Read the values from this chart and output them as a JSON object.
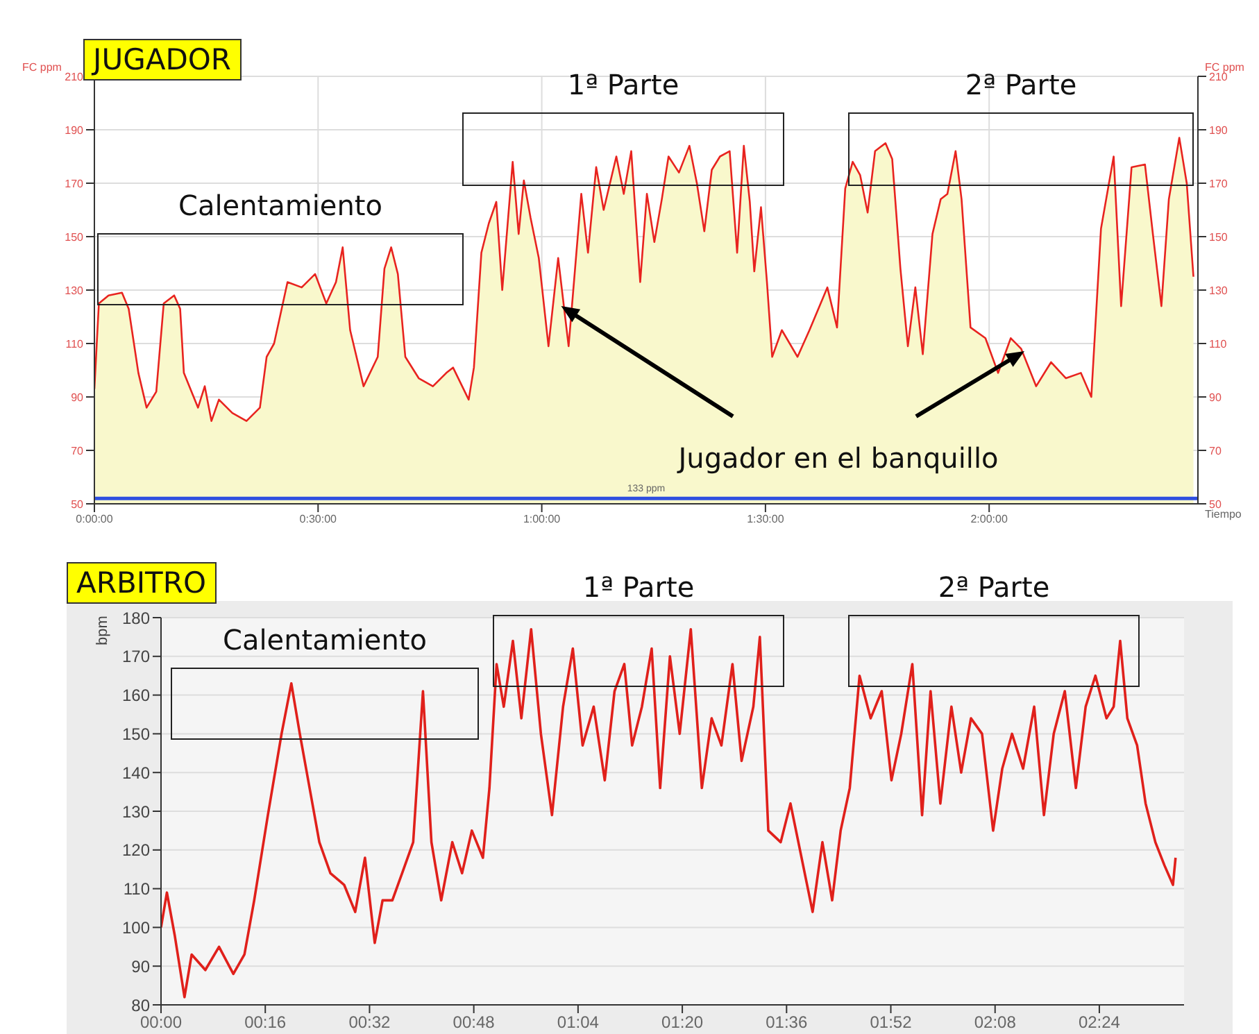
{
  "chart_data": [
    {
      "type": "area",
      "title": "JUGADOR",
      "xlabel": "Tiempo",
      "ylabel": "FC ppm",
      "y2label": "FC ppm",
      "color": "#e8231f",
      "x": [
        0,
        0.6,
        1.9,
        3.7,
        4.6,
        5.9,
        7,
        8.3,
        9.3,
        10.7,
        11.5,
        12,
        13.9,
        14.8,
        15.7,
        16.7,
        18.5,
        20.4,
        22.2,
        23.1,
        24.1,
        25.9,
        27.8,
        29.6,
        31.1,
        32.4,
        33.3,
        34.3,
        36.1,
        38,
        38.9,
        39.8,
        40.7,
        41.7,
        43.5,
        45.4,
        47.2,
        48.1,
        50.2,
        50.9,
        51.9,
        52.9,
        53.9,
        54.7,
        56.1,
        56.9,
        57.6,
        58.5,
        59.6,
        60.9,
        62.2,
        63.6,
        65.3,
        66.2,
        67.3,
        68.3,
        70,
        71,
        72,
        73.2,
        74.1,
        75.1,
        76.1,
        77,
        78.4,
        79.8,
        80.8,
        81.8,
        82.8,
        83.9,
        85.2,
        86.2,
        87.1,
        87.9,
        88.5,
        89.4,
        90.2,
        90.9,
        92.2,
        94.3,
        95.9,
        98.3,
        99.6,
        100.7,
        101.7,
        102.7,
        103.7,
        104.7,
        106.1,
        107,
        108.1,
        109.1,
        110.1,
        111.1,
        112.4,
        113.5,
        114.4,
        115.5,
        116.3,
        117.5,
        119.5,
        121.2,
        122.9,
        124.3,
        126.3,
        128.3,
        130.3,
        132.3,
        133.7,
        135,
        136.7,
        137.7,
        139.1,
        140.9,
        142,
        143.1,
        144.1,
        145.5,
        146.5,
        147.4
      ],
      "values": [
        93,
        125,
        128,
        129,
        123,
        99,
        86,
        92,
        125,
        128,
        123,
        99,
        86,
        94,
        81,
        89,
        84,
        81,
        86,
        105,
        110,
        133,
        131,
        136,
        125,
        133,
        146,
        115,
        94,
        105,
        138,
        146,
        136,
        105,
        97,
        94,
        99,
        101,
        89,
        101,
        144,
        155,
        163,
        130,
        178,
        151,
        171,
        157,
        142,
        109,
        142,
        109,
        166,
        144,
        176,
        160,
        180,
        166,
        182,
        133,
        166,
        148,
        164,
        180,
        174,
        184,
        170,
        152,
        175,
        180,
        182,
        144,
        184,
        163,
        137,
        161,
        133,
        105,
        115,
        105,
        115,
        131,
        116,
        168,
        178,
        173,
        159,
        182,
        185,
        179,
        138,
        109,
        131,
        106,
        151,
        164,
        166,
        182,
        164,
        116,
        112,
        99,
        112,
        108,
        94,
        103,
        97,
        99,
        90,
        153,
        180,
        124,
        176,
        177,
        150,
        124,
        164,
        187,
        170,
        135
      ],
      "xlim": [
        0,
        148
      ],
      "xticks": [
        {
          "value": 0,
          "label": "0:00:00"
        },
        {
          "value": 30,
          "label": "0:30:00"
        },
        {
          "value": 60,
          "label": "1:00:00"
        },
        {
          "value": 90,
          "label": "1:30:00"
        },
        {
          "value": 120,
          "label": "2:00:00"
        }
      ],
      "ylim": [
        50,
        210
      ],
      "yticks": [
        50,
        70,
        90,
        110,
        130,
        150,
        170,
        190,
        210
      ],
      "y2lim": [
        50,
        210
      ],
      "y2ticks": [
        50,
        70,
        90,
        110,
        130,
        150,
        170,
        190,
        210
      ],
      "grid": true,
      "ref_lines": [
        {
          "axis": "y",
          "value": 52,
          "label": "133 ppm",
          "color": "#2f4fe0"
        }
      ],
      "annotations": [
        "Calentamiento",
        "1ª Parte",
        "2ª Parte",
        {
          "text": "Jugador en el banquillo",
          "x": 62.6,
          "y": 124
        }
      ]
    },
    {
      "type": "line",
      "title": "ARBITRO",
      "ylabel": "bpm",
      "color": "#e0201b",
      "x": [
        0,
        0.9,
        2.1,
        3.6,
        4.7,
        6.8,
        8.9,
        11.1,
        12.8,
        14.3,
        16.4,
        18.5,
        20,
        21.3,
        22.8,
        24.3,
        26,
        28.1,
        29.8,
        31.3,
        32.8,
        34,
        35.5,
        37,
        38.7,
        40.2,
        41.5,
        43,
        44.7,
        46.2,
        47.7,
        49.4,
        50.4,
        51.5,
        52.6,
        54,
        55.3,
        56.8,
        58.3,
        60,
        61.7,
        63.2,
        64.7,
        66.4,
        68.1,
        69.6,
        71.1,
        72.3,
        73.8,
        75.3,
        76.6,
        78.1,
        79.6,
        81.3,
        83,
        84.5,
        86,
        87.7,
        89.1,
        90.9,
        91.9,
        93.2,
        95.1,
        96.6,
        98.3,
        100,
        101.5,
        103,
        104.3,
        105.7,
        107.2,
        108.9,
        110.6,
        112.1,
        113.6,
        115.3,
        116.8,
        118.1,
        119.6,
        121.3,
        122.8,
        124.3,
        126,
        127.7,
        129.1,
        130.6,
        132.3,
        134,
        135.5,
        137,
        138.7,
        140.4,
        141.9,
        143.4,
        145.1,
        146.2,
        147.2,
        148.3,
        149.8,
        151.1,
        152.6,
        154,
        155.3,
        155.7
      ],
      "values": [
        100,
        109,
        98,
        82,
        93,
        89,
        95,
        88,
        93,
        107,
        129,
        150,
        163,
        150,
        136,
        122,
        114,
        111,
        104,
        118,
        96,
        107,
        107,
        114,
        122,
        161,
        122,
        107,
        122,
        114,
        125,
        118,
        136,
        168,
        157,
        174,
        154,
        177,
        150,
        129,
        157,
        172,
        147,
        157,
        138,
        161,
        168,
        147,
        157,
        172,
        136,
        170,
        150,
        177,
        136,
        154,
        147,
        168,
        143,
        157,
        175,
        125,
        122,
        132,
        118,
        104,
        122,
        107,
        125,
        136,
        165,
        154,
        161,
        138,
        150,
        168,
        129,
        161,
        132,
        157,
        140,
        154,
        150,
        125,
        141,
        150,
        141,
        157,
        129,
        150,
        161,
        136,
        157,
        165,
        154,
        157,
        174,
        154,
        147,
        132,
        122,
        116,
        111,
        118
      ],
      "xlim": [
        0,
        157
      ],
      "xticks": [
        {
          "value": 0,
          "label": "00:00"
        },
        {
          "value": 16,
          "label": "00:16"
        },
        {
          "value": 32,
          "label": "00:32"
        },
        {
          "value": 48,
          "label": "00:48"
        },
        {
          "value": 64,
          "label": "01:04"
        },
        {
          "value": 80,
          "label": "01:20"
        },
        {
          "value": 96,
          "label": "01:36"
        },
        {
          "value": 112,
          "label": "01:52"
        },
        {
          "value": 128,
          "label": "02:08"
        },
        {
          "value": 144,
          "label": "02:24"
        }
      ],
      "ylim": [
        80,
        180
      ],
      "yticks": [
        80,
        90,
        100,
        110,
        120,
        130,
        140,
        150,
        160,
        170,
        180
      ],
      "grid": "y",
      "annotations": [
        "Calentamiento",
        "1ª Parte",
        "2ª Parte"
      ]
    }
  ]
}
